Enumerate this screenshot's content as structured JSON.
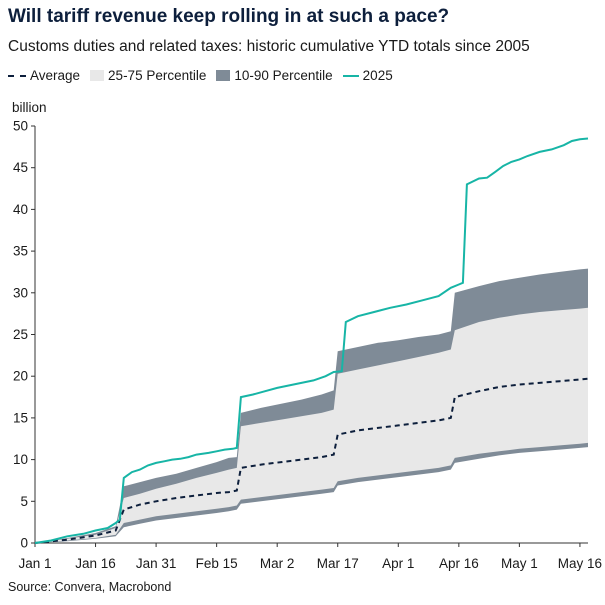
{
  "chart_data": {
    "type": "area",
    "title": "Will tariff revenue keep rolling in at such a pace?",
    "subtitle": "Customs duties and related taxes: historic cumulative YTD totals since 2005",
    "ylabel": "billion",
    "ylim": [
      0,
      50
    ],
    "yticks": [
      0,
      5,
      10,
      15,
      20,
      25,
      30,
      35,
      40,
      45,
      50
    ],
    "xlim": [
      0,
      137
    ],
    "xticks": [
      {
        "day": 0,
        "label": "Jan 1"
      },
      {
        "day": 15,
        "label": "Jan 16"
      },
      {
        "day": 30,
        "label": "Jan 31"
      },
      {
        "day": 45,
        "label": "Feb 15"
      },
      {
        "day": 60,
        "label": "Mar 2"
      },
      {
        "day": 75,
        "label": "Mar 17"
      },
      {
        "day": 90,
        "label": "Apr 1"
      },
      {
        "day": 105,
        "label": "Apr 16"
      },
      {
        "day": 120,
        "label": "May 1"
      },
      {
        "day": 135,
        "label": "May 16"
      }
    ],
    "legend": [
      "Average",
      "25-75 Percentile",
      "10-90 Percentile",
      "2025"
    ],
    "colors": {
      "average": "#0d1f3c",
      "p2575": "#e8e8e8",
      "p1090": "#7f8b97",
      "y2025": "#17b5a6"
    },
    "series": [
      {
        "name": "10-90 Percentile (upper)",
        "points": [
          [
            0,
            0
          ],
          [
            8,
            0.6
          ],
          [
            15,
            1.2
          ],
          [
            20,
            2
          ],
          [
            22,
            6.8
          ],
          [
            26,
            7.3
          ],
          [
            30,
            7.8
          ],
          [
            35,
            8.3
          ],
          [
            40,
            9
          ],
          [
            45,
            9.7
          ],
          [
            48,
            10.2
          ],
          [
            50,
            10.3
          ],
          [
            51,
            15.6
          ],
          [
            56,
            16.2
          ],
          [
            61,
            16.7
          ],
          [
            66,
            17.2
          ],
          [
            71,
            17.8
          ],
          [
            74,
            18.3
          ],
          [
            75,
            23
          ],
          [
            80,
            23.5
          ],
          [
            85,
            24
          ],
          [
            90,
            24.3
          ],
          [
            95,
            24.7
          ],
          [
            100,
            25
          ],
          [
            103,
            25.4
          ],
          [
            104,
            30
          ],
          [
            110,
            30.8
          ],
          [
            115,
            31.4
          ],
          [
            120,
            31.8
          ],
          [
            125,
            32.2
          ],
          [
            130,
            32.5
          ],
          [
            135,
            32.8
          ],
          [
            137,
            32.9
          ]
        ]
      },
      {
        "name": "25-75 Percentile (upper)",
        "points": [
          [
            0,
            0
          ],
          [
            8,
            0.5
          ],
          [
            15,
            1
          ],
          [
            20,
            1.8
          ],
          [
            22,
            5.4
          ],
          [
            26,
            5.9
          ],
          [
            30,
            6.5
          ],
          [
            35,
            7.1
          ],
          [
            40,
            7.8
          ],
          [
            45,
            8.4
          ],
          [
            48,
            8.8
          ],
          [
            50,
            9
          ],
          [
            51,
            14
          ],
          [
            56,
            14.4
          ],
          [
            61,
            14.8
          ],
          [
            66,
            15.2
          ],
          [
            71,
            15.6
          ],
          [
            74,
            16
          ],
          [
            75,
            20.3
          ],
          [
            80,
            20.8
          ],
          [
            85,
            21.3
          ],
          [
            90,
            21.8
          ],
          [
            95,
            22.3
          ],
          [
            100,
            22.8
          ],
          [
            103,
            23.2
          ],
          [
            104,
            25.5
          ],
          [
            110,
            26.5
          ],
          [
            115,
            27
          ],
          [
            120,
            27.4
          ],
          [
            125,
            27.7
          ],
          [
            130,
            27.9
          ],
          [
            135,
            28.1
          ],
          [
            137,
            28.2
          ]
        ]
      },
      {
        "name": "Average",
        "points": [
          [
            0,
            0
          ],
          [
            8,
            0.4
          ],
          [
            15,
            0.9
          ],
          [
            20,
            1.5
          ],
          [
            22,
            4
          ],
          [
            26,
            4.6
          ],
          [
            30,
            5
          ],
          [
            35,
            5.4
          ],
          [
            40,
            5.7
          ],
          [
            45,
            6
          ],
          [
            48,
            6.1
          ],
          [
            50,
            6.3
          ],
          [
            51,
            9
          ],
          [
            56,
            9.4
          ],
          [
            61,
            9.7
          ],
          [
            66,
            10
          ],
          [
            71,
            10.3
          ],
          [
            74,
            10.6
          ],
          [
            75,
            13
          ],
          [
            80,
            13.5
          ],
          [
            85,
            13.8
          ],
          [
            90,
            14.1
          ],
          [
            95,
            14.4
          ],
          [
            100,
            14.7
          ],
          [
            103,
            15
          ],
          [
            104,
            17.5
          ],
          [
            110,
            18.2
          ],
          [
            115,
            18.7
          ],
          [
            120,
            19
          ],
          [
            125,
            19.2
          ],
          [
            130,
            19.4
          ],
          [
            135,
            19.6
          ],
          [
            137,
            19.7
          ]
        ]
      },
      {
        "name": "25-75 Percentile (lower)",
        "points": [
          [
            0,
            0
          ],
          [
            8,
            0.3
          ],
          [
            15,
            0.6
          ],
          [
            20,
            1
          ],
          [
            22,
            2.4
          ],
          [
            26,
            2.8
          ],
          [
            30,
            3.2
          ],
          [
            35,
            3.5
          ],
          [
            40,
            3.8
          ],
          [
            45,
            4.1
          ],
          [
            48,
            4.3
          ],
          [
            50,
            4.5
          ],
          [
            51,
            5.2
          ],
          [
            56,
            5.5
          ],
          [
            61,
            5.8
          ],
          [
            66,
            6.1
          ],
          [
            71,
            6.4
          ],
          [
            74,
            6.6
          ],
          [
            75,
            7.4
          ],
          [
            80,
            7.8
          ],
          [
            85,
            8.1
          ],
          [
            90,
            8.4
          ],
          [
            95,
            8.7
          ],
          [
            100,
            9
          ],
          [
            103,
            9.3
          ],
          [
            104,
            10.2
          ],
          [
            110,
            10.7
          ],
          [
            115,
            11
          ],
          [
            120,
            11.3
          ],
          [
            125,
            11.5
          ],
          [
            130,
            11.7
          ],
          [
            135,
            11.9
          ],
          [
            137,
            12
          ]
        ]
      },
      {
        "name": "10-90 Percentile (lower)",
        "points": [
          [
            0,
            0
          ],
          [
            8,
            0.2
          ],
          [
            15,
            0.5
          ],
          [
            20,
            0.8
          ],
          [
            22,
            1.9
          ],
          [
            26,
            2.3
          ],
          [
            30,
            2.7
          ],
          [
            35,
            3
          ],
          [
            40,
            3.3
          ],
          [
            45,
            3.6
          ],
          [
            48,
            3.8
          ],
          [
            50,
            4
          ],
          [
            51,
            4.7
          ],
          [
            56,
            5
          ],
          [
            61,
            5.3
          ],
          [
            66,
            5.6
          ],
          [
            71,
            5.9
          ],
          [
            74,
            6.1
          ],
          [
            75,
            6.9
          ],
          [
            80,
            7.3
          ],
          [
            85,
            7.6
          ],
          [
            90,
            7.9
          ],
          [
            95,
            8.2
          ],
          [
            100,
            8.5
          ],
          [
            103,
            8.8
          ],
          [
            104,
            9.6
          ],
          [
            110,
            10.1
          ],
          [
            115,
            10.5
          ],
          [
            120,
            10.8
          ],
          [
            125,
            11
          ],
          [
            130,
            11.2
          ],
          [
            135,
            11.4
          ],
          [
            137,
            11.5
          ]
        ]
      },
      {
        "name": "2025",
        "points": [
          [
            0,
            0
          ],
          [
            4,
            0.3
          ],
          [
            8,
            0.8
          ],
          [
            12,
            1.1
          ],
          [
            15,
            1.5
          ],
          [
            18,
            1.8
          ],
          [
            20,
            2.4
          ],
          [
            21,
            2.8
          ],
          [
            22,
            7.8
          ],
          [
            24,
            8.5
          ],
          [
            26,
            8.8
          ],
          [
            28,
            9.3
          ],
          [
            30,
            9.6
          ],
          [
            32,
            9.8
          ],
          [
            34,
            10
          ],
          [
            36,
            10.1
          ],
          [
            38,
            10.3
          ],
          [
            40,
            10.6
          ],
          [
            43,
            10.8
          ],
          [
            45,
            11
          ],
          [
            47,
            11.2
          ],
          [
            49,
            11.3
          ],
          [
            50,
            11.4
          ],
          [
            51,
            17.5
          ],
          [
            54,
            17.8
          ],
          [
            57,
            18.2
          ],
          [
            60,
            18.6
          ],
          [
            63,
            18.9
          ],
          [
            66,
            19.2
          ],
          [
            69,
            19.5
          ],
          [
            72,
            20
          ],
          [
            74,
            20.5
          ],
          [
            76,
            20.6
          ],
          [
            77,
            26.5
          ],
          [
            80,
            27.2
          ],
          [
            84,
            27.7
          ],
          [
            88,
            28.2
          ],
          [
            92,
            28.6
          ],
          [
            96,
            29.1
          ],
          [
            100,
            29.6
          ],
          [
            103,
            30.6
          ],
          [
            105,
            31
          ],
          [
            106,
            31.2
          ],
          [
            107,
            43
          ],
          [
            110,
            43.7
          ],
          [
            112,
            43.8
          ],
          [
            114,
            44.5
          ],
          [
            116,
            45.2
          ],
          [
            118,
            45.7
          ],
          [
            120,
            46
          ],
          [
            122,
            46.4
          ],
          [
            125,
            46.9
          ],
          [
            128,
            47.2
          ],
          [
            131,
            47.7
          ],
          [
            133,
            48.2
          ],
          [
            135,
            48.4
          ],
          [
            137,
            48.5
          ]
        ]
      }
    ]
  },
  "legend_labels": {
    "average": "Average",
    "p2575": "25-75 Percentile",
    "p1090": "10-90 Percentile",
    "y2025": "2025"
  },
  "source": "Source: Convera, Macrobond"
}
